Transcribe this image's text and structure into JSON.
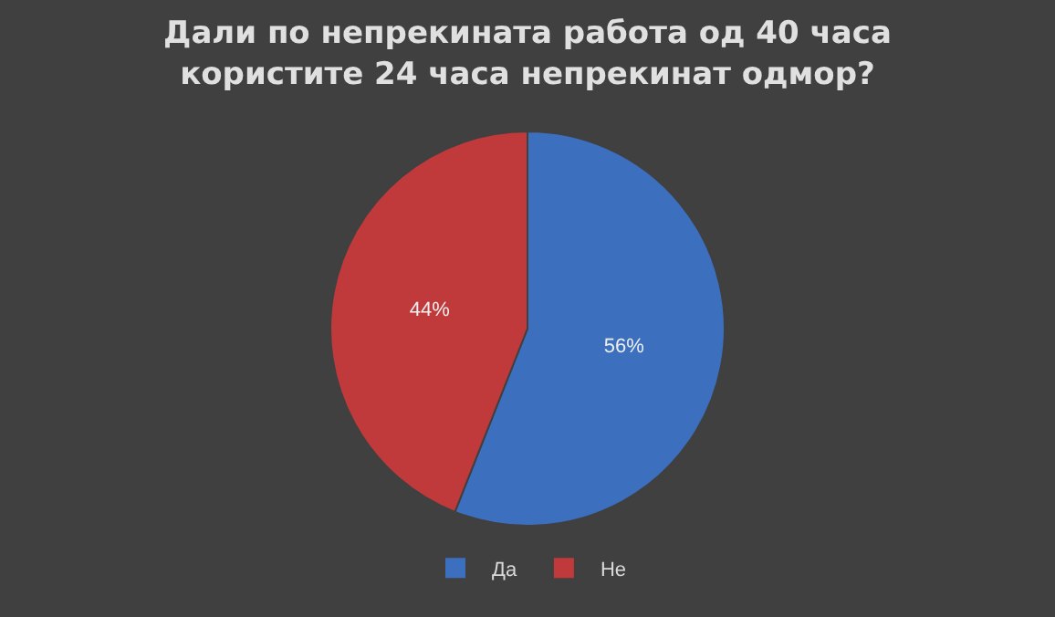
{
  "chart_data": {
    "type": "pie",
    "title": "Дали по непрекината работа од 40 часа користите 24 часа непрекинат одмор?",
    "categories": [
      "Да",
      "Не"
    ],
    "values": [
      56,
      44
    ],
    "value_labels": [
      "56%",
      "44%"
    ],
    "colors": [
      "#3d6fbf",
      "#c0393b"
    ],
    "legend": "bottom"
  }
}
